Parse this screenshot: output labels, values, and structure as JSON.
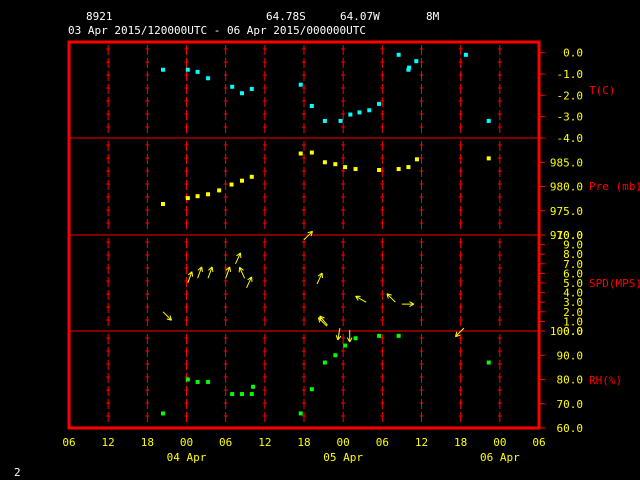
{
  "header": {
    "station": "8921",
    "lat": "64.78S",
    "lon": "64.07W",
    "elev": "8M",
    "period": "03 Apr 2015/120000UTC - 06 Apr 2015/000000UTC"
  },
  "footer_label": "2",
  "colors": {
    "frame": "#ff0000",
    "text": "#ffff00",
    "header": "#ffffff",
    "temp": "#00ffff",
    "pres": "#ffff00",
    "wind": "#ffff00",
    "rh": "#00ff00"
  },
  "chart_data": {
    "type": "scatter",
    "x_axis": {
      "range_hours": [
        0,
        72
      ],
      "tick_labels": [
        "06",
        "12",
        "18",
        "00",
        "06",
        "12",
        "18",
        "00",
        "06",
        "12",
        "18",
        "00",
        "06"
      ],
      "date_labels": [
        {
          "label": "04 Apr",
          "hour": 18
        },
        {
          "label": "05 Apr",
          "hour": 42
        },
        {
          "label": "06 Apr",
          "hour": 66
        }
      ]
    },
    "panels": [
      {
        "name": "T(C)",
        "ylim": [
          -4.0,
          0.5
        ],
        "tick_labels": [
          "0.0",
          "-1.0",
          "-2.0",
          "-3.0",
          "-4.0"
        ],
        "tick_values": [
          0.0,
          -1.0,
          -2.0,
          -3.0,
          -4.0
        ],
        "color": "#00ffff",
        "points": [
          [
            14.4,
            -0.8
          ],
          [
            18.2,
            -0.8
          ],
          [
            19.7,
            -0.9
          ],
          [
            21.3,
            -1.2
          ],
          [
            25.0,
            -1.6
          ],
          [
            26.5,
            -1.9
          ],
          [
            28.0,
            -1.7
          ],
          [
            35.5,
            -1.5
          ],
          [
            37.2,
            -2.5
          ],
          [
            39.2,
            -3.2
          ],
          [
            41.6,
            -3.2
          ],
          [
            43.1,
            -2.9
          ],
          [
            44.5,
            -2.8
          ],
          [
            46.0,
            -2.7
          ],
          [
            47.5,
            -2.4
          ],
          [
            50.5,
            -0.1
          ],
          [
            52.0,
            -0.8
          ],
          [
            52.1,
            -0.7
          ],
          [
            53.2,
            -0.4
          ],
          [
            60.8,
            -0.1
          ],
          [
            64.3,
            -3.2
          ]
        ]
      },
      {
        "name": "Pre (mb)",
        "ylim": [
          970.0,
          990.0
        ],
        "tick_labels": [
          "985.0",
          "980.0",
          "975.0",
          "970.0"
        ],
        "tick_values": [
          985.0,
          980.0,
          975.0,
          970.0
        ],
        "color": "#ffff00",
        "points": [
          [
            14.4,
            976.4
          ],
          [
            18.2,
            977.6
          ],
          [
            19.7,
            978.0
          ],
          [
            21.3,
            978.4
          ],
          [
            23.0,
            979.2
          ],
          [
            24.9,
            980.4
          ],
          [
            26.5,
            981.2
          ],
          [
            28.0,
            982.0
          ],
          [
            35.5,
            986.8
          ],
          [
            37.2,
            987.0
          ],
          [
            39.2,
            985.0
          ],
          [
            40.8,
            984.6
          ],
          [
            42.3,
            984.0
          ],
          [
            43.9,
            983.6
          ],
          [
            47.5,
            983.4
          ],
          [
            50.5,
            983.6
          ],
          [
            52.0,
            984.0
          ],
          [
            53.3,
            985.6
          ],
          [
            64.3,
            985.8
          ]
        ]
      },
      {
        "name": "SPD(MPS)",
        "ylim": [
          0.0,
          10.0
        ],
        "tick_labels": [
          "10.0",
          "9.0",
          "8.0",
          "7.0",
          "6.0",
          "5.0",
          "4.0",
          "3.0",
          "2.0",
          "1.0",
          "0.0"
        ],
        "tick_values": [
          10.0,
          9.0,
          8.0,
          7.0,
          6.0,
          5.0,
          4.0,
          3.0,
          2.0,
          1.0,
          0.0
        ],
        "color": "#ffff00",
        "vectors": [
          [
            14.4,
            2.0,
            135
          ],
          [
            18.2,
            5.0,
            20
          ],
          [
            19.7,
            5.5,
            20
          ],
          [
            21.3,
            5.5,
            20
          ],
          [
            24.0,
            5.5,
            20
          ],
          [
            25.5,
            7.0,
            25
          ],
          [
            26.9,
            5.5,
            335
          ],
          [
            27.2,
            4.5,
            25
          ],
          [
            36.0,
            9.5,
            45
          ],
          [
            38.0,
            4.9,
            25
          ],
          [
            39.5,
            0.5,
            315
          ],
          [
            39.6,
            0.6,
            320
          ],
          [
            41.5,
            0.3,
            190
          ],
          [
            43.0,
            0.1,
            180
          ],
          [
            45.5,
            3.0,
            300
          ],
          [
            50.0,
            3.0,
            315
          ],
          [
            51.0,
            2.8,
            90
          ],
          [
            60.5,
            0.3,
            225
          ]
        ]
      },
      {
        "name": "RH(%)",
        "ylim": [
          60.0,
          100.0
        ],
        "tick_labels": [
          "100.0",
          "90.0",
          "80.0",
          "70.0",
          "60.0"
        ],
        "tick_values": [
          100.0,
          90.0,
          80.0,
          70.0,
          60.0
        ],
        "color": "#00ff00",
        "points": [
          [
            14.4,
            66.0
          ],
          [
            18.2,
            80.0
          ],
          [
            19.7,
            79.0
          ],
          [
            21.3,
            79.0
          ],
          [
            25.0,
            74.0
          ],
          [
            26.5,
            74.0
          ],
          [
            28.0,
            74.0
          ],
          [
            28.2,
            77.0
          ],
          [
            35.5,
            66.0
          ],
          [
            37.2,
            76.0
          ],
          [
            39.2,
            87.0
          ],
          [
            40.8,
            90.0
          ],
          [
            42.3,
            94.0
          ],
          [
            43.9,
            97.0
          ],
          [
            47.5,
            98.0
          ],
          [
            50.5,
            98.0
          ],
          [
            64.3,
            87.0
          ]
        ]
      }
    ]
  }
}
